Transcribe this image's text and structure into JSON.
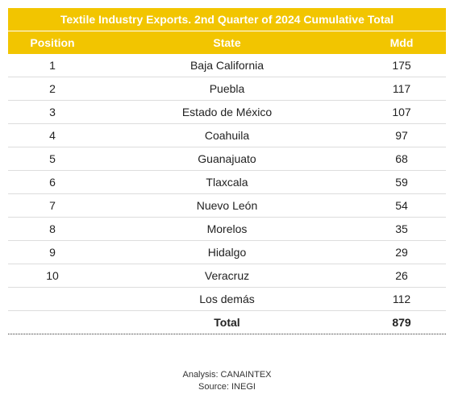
{
  "chart_data": {
    "type": "table",
    "title": "Textile Industry Exports. 2nd Quarter of 2024 Cumulative Total",
    "columns": [
      "Position",
      "State",
      "Mdd"
    ],
    "rows": [
      {
        "position": "1",
        "state": "Baja California",
        "value": "175"
      },
      {
        "position": "2",
        "state": "Puebla",
        "value": "117"
      },
      {
        "position": "3",
        "state": "Estado de México",
        "value": "107"
      },
      {
        "position": "4",
        "state": "Coahuila",
        "value": "97"
      },
      {
        "position": "5",
        "state": "Guanajuato",
        "value": "68"
      },
      {
        "position": "6",
        "state": "Tlaxcala",
        "value": "59"
      },
      {
        "position": "7",
        "state": "Nuevo León",
        "value": "54"
      },
      {
        "position": "8",
        "state": "Morelos",
        "value": "35"
      },
      {
        "position": "9",
        "state": "Hidalgo",
        "value": "29"
      },
      {
        "position": "10",
        "state": "Veracruz",
        "value": "26"
      },
      {
        "position": "",
        "state": "Los demás",
        "value": "112"
      }
    ],
    "total": {
      "label": "Total",
      "value": "879"
    }
  },
  "footer": {
    "analysis": "Analysis: CANAINTEX",
    "source": "Source: INEGI"
  },
  "colors": {
    "header_background": "#f2c500",
    "header_text": "#ffffff"
  }
}
